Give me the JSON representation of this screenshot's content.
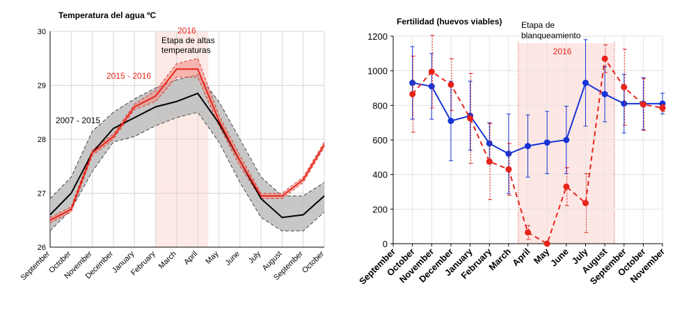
{
  "chart_data": [
    {
      "type": "line",
      "title": "Temperatura del agua ºC",
      "categories": [
        "September",
        "October",
        "November",
        "December",
        "January",
        "February",
        "March",
        "April",
        "May",
        "June",
        "July",
        "August",
        "September",
        "October"
      ],
      "ylim": [
        26,
        30
      ],
      "yticks": [
        "26",
        "27",
        "28",
        "29",
        "30"
      ],
      "band_label_top": "2016",
      "band_label": [
        "Etapa de altas",
        "temperaturas"
      ],
      "series": [
        {
          "name": "2007 - 2015",
          "color": "#000000",
          "values": [
            26.6,
            27.0,
            27.75,
            28.2,
            28.4,
            28.6,
            28.7,
            28.85,
            28.3,
            27.6,
            26.9,
            26.55,
            26.6,
            26.95
          ],
          "upper": [
            26.9,
            27.3,
            28.15,
            28.5,
            28.75,
            28.95,
            29.1,
            29.2,
            28.7,
            28.0,
            27.3,
            26.95,
            26.95,
            27.2
          ],
          "lower": [
            26.3,
            26.7,
            27.4,
            27.95,
            28.05,
            28.25,
            28.4,
            28.5,
            27.95,
            27.2,
            26.55,
            26.3,
            26.3,
            26.65
          ]
        },
        {
          "name": "2015 - 2016",
          "color": "#e8231a",
          "values": [
            26.5,
            26.7,
            27.75,
            28.05,
            28.6,
            28.8,
            29.3,
            29.3,
            28.35,
            27.6,
            26.95,
            26.95,
            27.25,
            27.9
          ],
          "upper": [
            26.55,
            26.75,
            27.8,
            28.1,
            28.65,
            28.9,
            29.4,
            29.5,
            28.45,
            27.7,
            27.0,
            27.0,
            27.3,
            27.95
          ],
          "lower": [
            26.45,
            26.65,
            27.7,
            28.0,
            28.55,
            28.7,
            29.15,
            29.15,
            28.25,
            27.5,
            26.9,
            26.9,
            27.2,
            27.85
          ]
        }
      ]
    },
    {
      "type": "line",
      "title": "Fertilidad (huevos viables)",
      "categories": [
        "September",
        "October",
        "November",
        "December",
        "January",
        "February",
        "March",
        "April",
        "May",
        "June",
        "July",
        "August",
        "September",
        "October",
        "November"
      ],
      "ylim": [
        0,
        1200
      ],
      "yticks": [
        "0",
        "200",
        "400",
        "600",
        "800",
        "1000",
        "1200"
      ],
      "band_label": [
        "Etapa de",
        "blanqueamiento"
      ],
      "band_year": "2016",
      "series": [
        {
          "name": "blue",
          "color": "#1533d6",
          "style": "solid",
          "x": [
            1,
            2,
            3,
            4,
            5,
            6,
            7,
            8,
            9,
            10,
            11,
            12,
            13,
            14
          ],
          "values": [
            930,
            910,
            710,
            740,
            580,
            520,
            565,
            585,
            600,
            930,
            865,
            810,
            810,
            810
          ],
          "err": [
            210,
            190,
            230,
            200,
            120,
            230,
            180,
            180,
            195,
            250,
            160,
            170,
            150,
            60
          ]
        },
        {
          "name": "red",
          "color": "#e8231a",
          "style": "dashed",
          "x": [
            1,
            2,
            3,
            4,
            5,
            6,
            7,
            8,
            9,
            10,
            11,
            12,
            13,
            14
          ],
          "values": [
            865,
            995,
            920,
            725,
            475,
            430,
            65,
            0,
            330,
            235,
            1070,
            905,
            805,
            785
          ],
          "err": [
            220,
            210,
            150,
            260,
            220,
            150,
            40,
            0,
            110,
            170,
            80,
            220,
            150,
            20
          ]
        }
      ]
    }
  ]
}
